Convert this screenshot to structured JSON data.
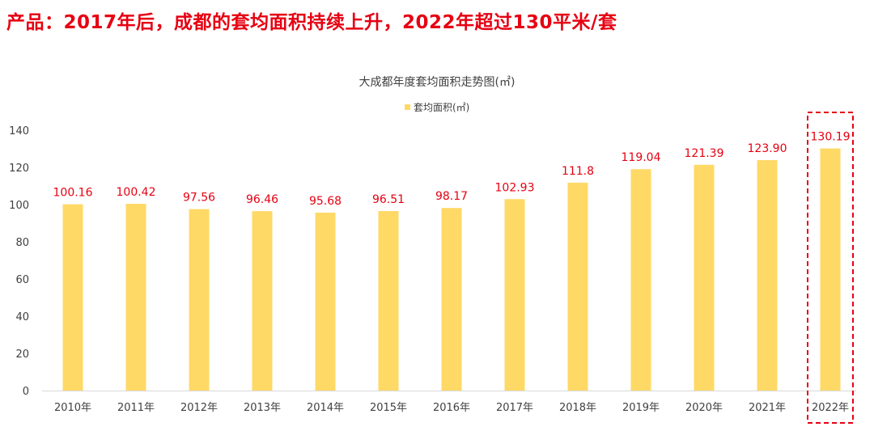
{
  "headline": "产品：2017年后，成都的套均面积持续上升，2022年超过130平米/套",
  "chart_data": {
    "type": "bar",
    "title": "大成都年度套均面积走势图(㎡)",
    "categories": [
      "2010年",
      "2011年",
      "2012年",
      "2013年",
      "2014年",
      "2015年",
      "2016年",
      "2017年",
      "2018年",
      "2019年",
      "2020年",
      "2021年",
      "2022年"
    ],
    "series": [
      {
        "name": "套均面积(㎡)",
        "values": [
          100.16,
          100.42,
          97.56,
          96.46,
          95.68,
          96.51,
          98.17,
          102.93,
          111.8,
          119.04,
          121.39,
          123.9,
          130.19
        ],
        "labels": [
          "100.16",
          "100.42",
          "97.56",
          "96.46",
          "95.68",
          "96.51",
          "98.17",
          "102.93",
          "111.8",
          "119.04",
          "121.39",
          "123.90",
          "130.19"
        ]
      }
    ],
    "ylim": [
      0,
      140
    ],
    "yticks": [
      0,
      20,
      40,
      60,
      80,
      100,
      120,
      140
    ],
    "grid": false,
    "legend_position": "top",
    "highlight_category": "2022年",
    "colors": {
      "bar": "#FFD966",
      "data_label": "#e60012",
      "highlight_box": "#e60012",
      "axis": "#d9d9d9",
      "text": "#404040"
    }
  }
}
